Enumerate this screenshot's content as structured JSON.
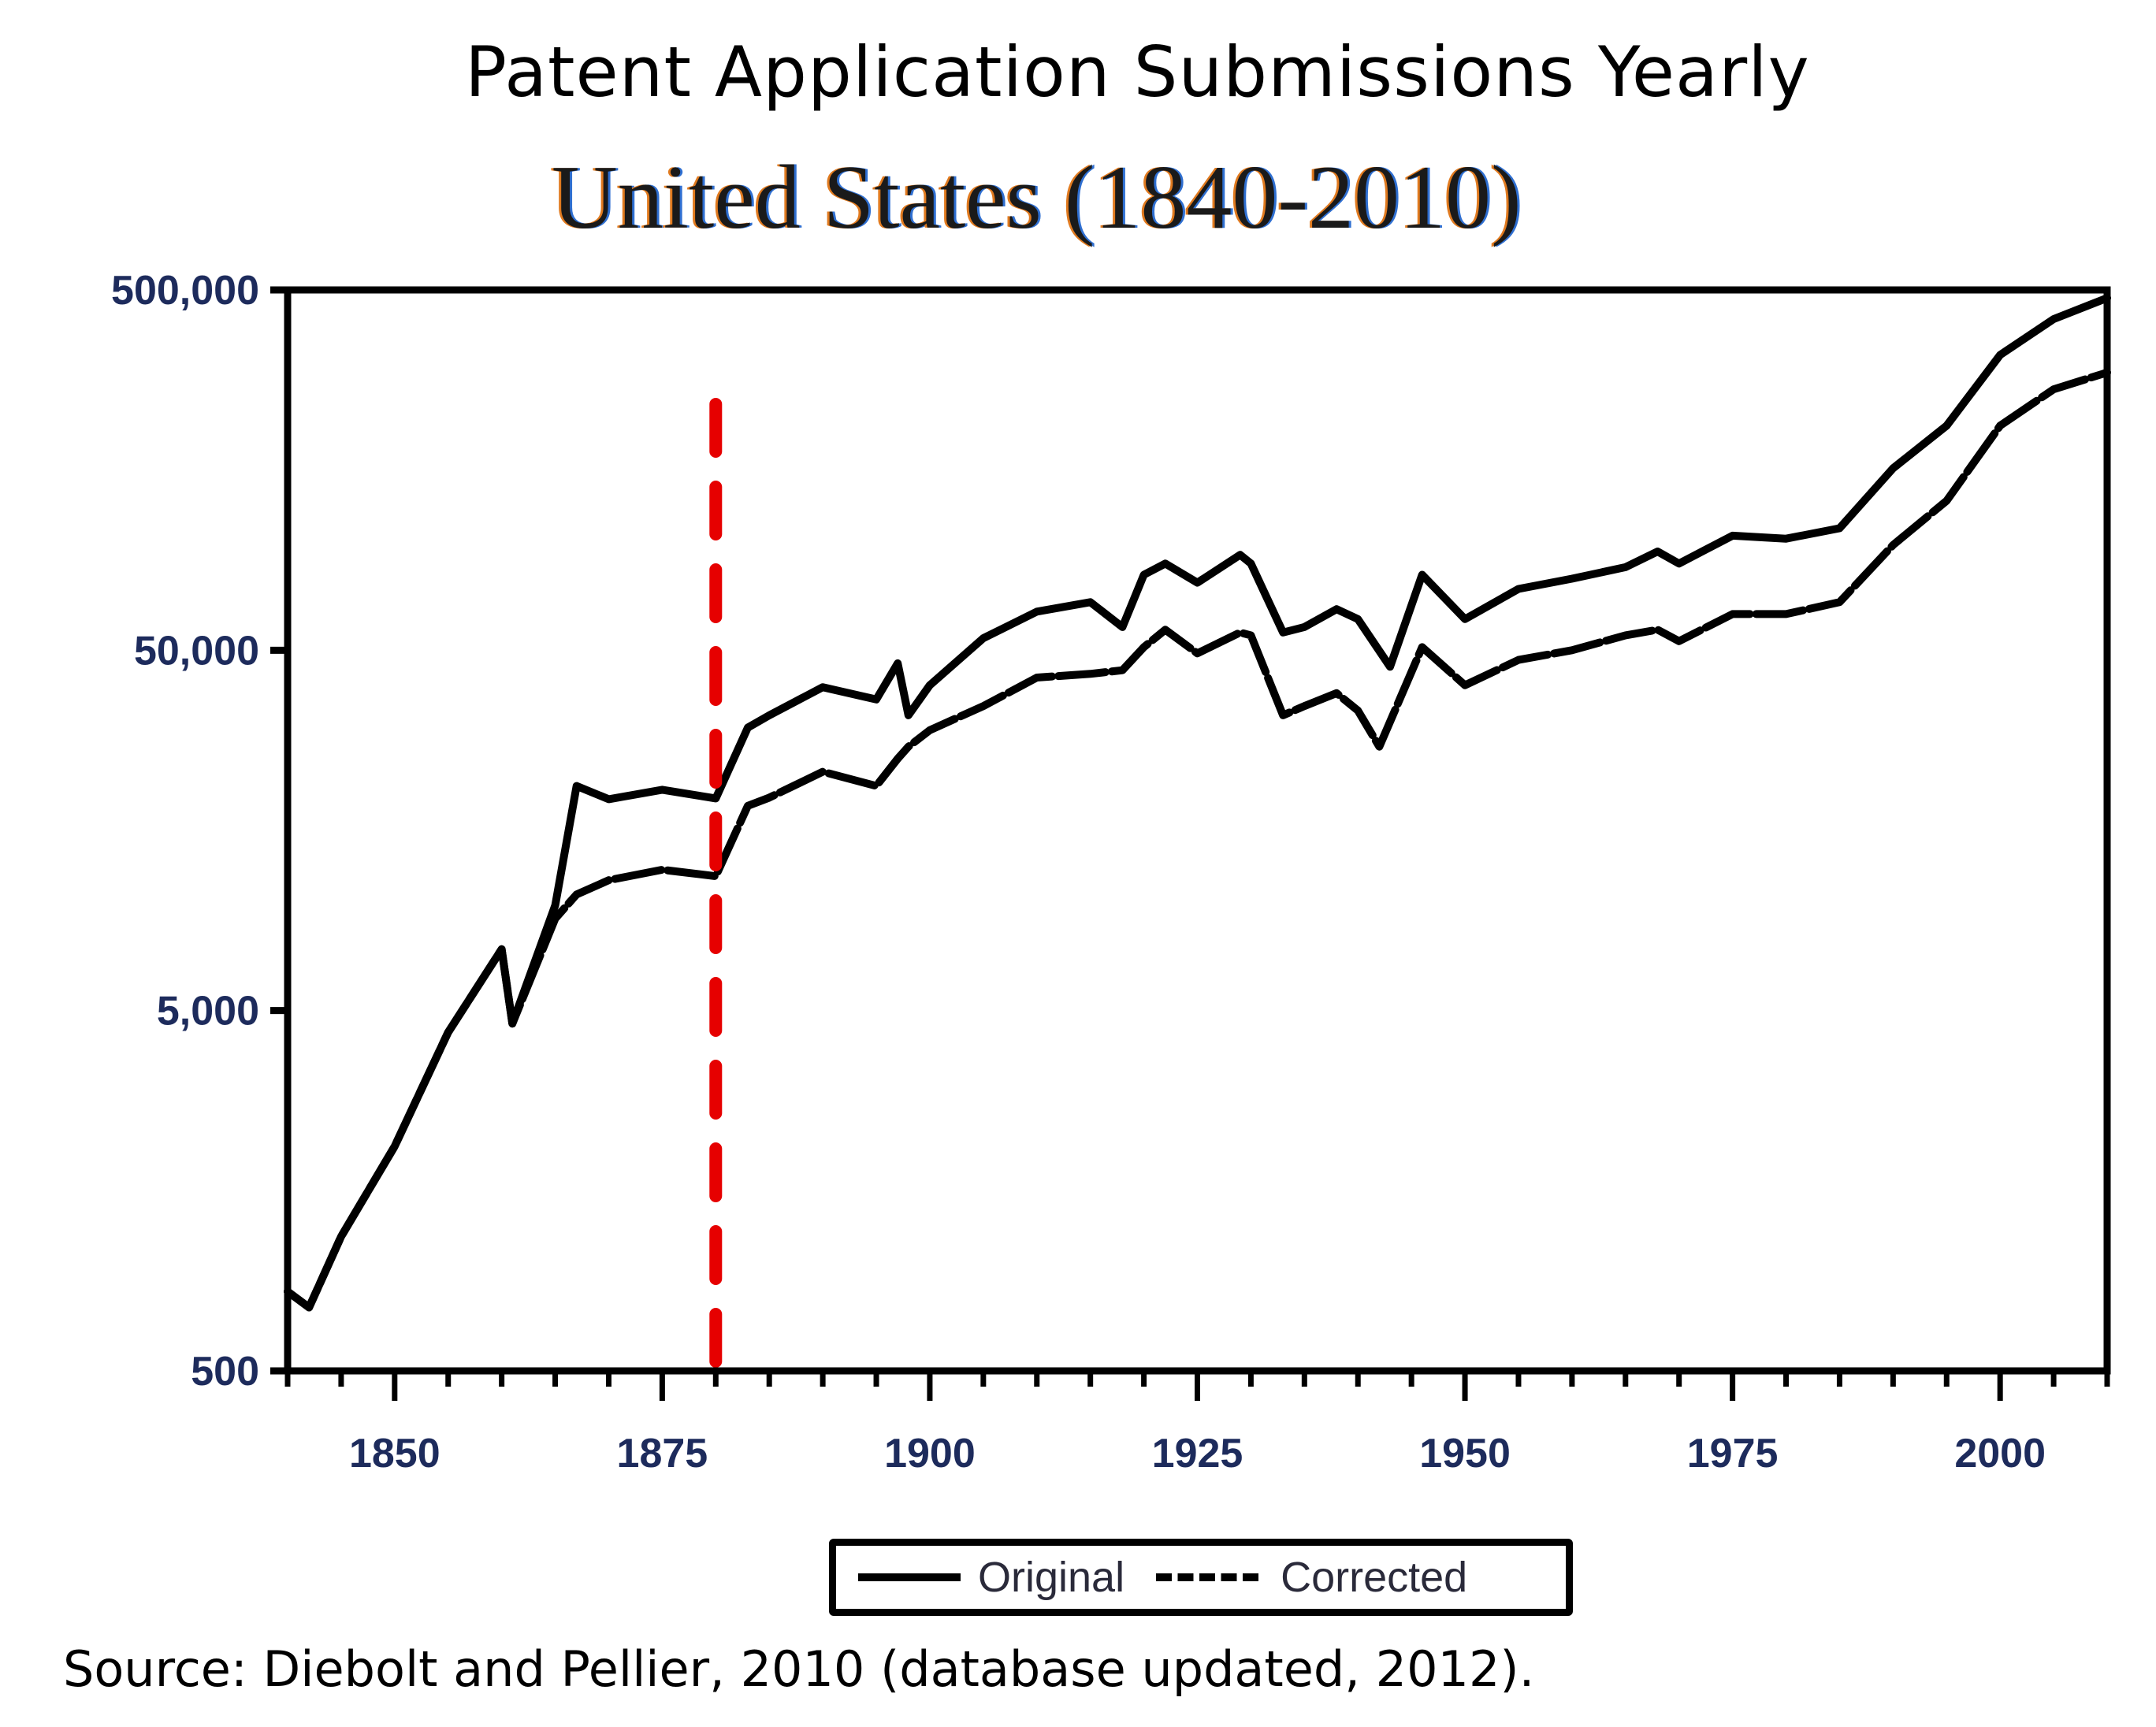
{
  "title": "Patent Application Submissions Yearly",
  "subtitle": "United States (1840-2010)",
  "source": "Source: Diebolt and Pellier, 2010 (database updated, 2012).",
  "legend": {
    "items": [
      {
        "label": "Original",
        "style": "solid"
      },
      {
        "label": "Corrected",
        "style": "dashed"
      }
    ]
  },
  "colors": {
    "line": "#000000",
    "marker_line": "#e60000",
    "axis": "#000000"
  },
  "chart_data": {
    "type": "line",
    "title": "Patent Application Submissions Yearly",
    "subtitle": "United States (1840-2010)",
    "xlabel": "",
    "ylabel": "",
    "yscale": "log",
    "ylim": [
      500,
      500000
    ],
    "xlim": [
      1840,
      2010
    ],
    "y_ticks": [
      "500",
      "5,000",
      "50,000",
      "500,000"
    ],
    "y_tick_values": [
      500,
      5000,
      50000,
      500000
    ],
    "x_ticks": [
      "1850",
      "1875",
      "1900",
      "1925",
      "1950",
      "1975",
      "2000"
    ],
    "x_tick_values": [
      1850,
      1875,
      1900,
      1925,
      1950,
      1975,
      2000
    ],
    "grid": false,
    "legend_position": "bottom-center",
    "annotations": [
      {
        "type": "vertical-dashed-line",
        "x": 1880,
        "color": "#e60000"
      }
    ],
    "series": [
      {
        "name": "Original",
        "style": "solid",
        "x": [
          1840,
          1842,
          1845,
          1850,
          1855,
          1860,
          1861,
          1865,
          1867,
          1870,
          1875,
          1880,
          1883,
          1885,
          1890,
          1895,
          1897,
          1898,
          1900,
          1905,
          1910,
          1915,
          1918,
          1920,
          1922,
          1925,
          1929,
          1930,
          1933,
          1935,
          1938,
          1940,
          1943,
          1946,
          1950,
          1955,
          1960,
          1965,
          1968,
          1970,
          1975,
          1980,
          1985,
          1990,
          1995,
          2000,
          2005,
          2010
        ],
        "values": [
          830,
          750,
          1180,
          2100,
          4350,
          7400,
          4600,
          9800,
          21000,
          19300,
          20500,
          19400,
          30500,
          33000,
          39500,
          36500,
          46000,
          33000,
          40000,
          54000,
          64000,
          68000,
          58000,
          81000,
          87000,
          77000,
          92000,
          87000,
          56000,
          58000,
          65000,
          61000,
          45000,
          81000,
          61000,
          74000,
          79000,
          85000,
          94000,
          87000,
          104000,
          102000,
          109000,
          160000,
          210000,
          330000,
          415000,
          475000
        ]
      },
      {
        "name": "Corrected",
        "style": "dashed",
        "x": [
          1840,
          1842,
          1845,
          1850,
          1855,
          1860,
          1861,
          1865,
          1867,
          1870,
          1875,
          1880,
          1883,
          1885,
          1890,
          1895,
          1897,
          1898,
          1900,
          1905,
          1910,
          1915,
          1918,
          1920,
          1922,
          1925,
          1929,
          1930,
          1933,
          1935,
          1938,
          1940,
          1942,
          1946,
          1950,
          1955,
          1960,
          1965,
          1968,
          1970,
          1975,
          1980,
          1985,
          1990,
          1995,
          2000,
          2005,
          2010
        ],
        "values": [
          830,
          750,
          1180,
          2100,
          4350,
          7400,
          4600,
          9000,
          10500,
          11500,
          12300,
          11800,
          18500,
          19500,
          23000,
          21000,
          25000,
          27000,
          30000,
          35000,
          42000,
          43000,
          44000,
          51000,
          57000,
          49000,
          56000,
          55000,
          33000,
          35000,
          38000,
          34000,
          27000,
          51000,
          40000,
          47000,
          50000,
          55000,
          57000,
          53000,
          63000,
          63000,
          68000,
          98000,
          130000,
          210000,
          265000,
          295000
        ]
      }
    ]
  }
}
